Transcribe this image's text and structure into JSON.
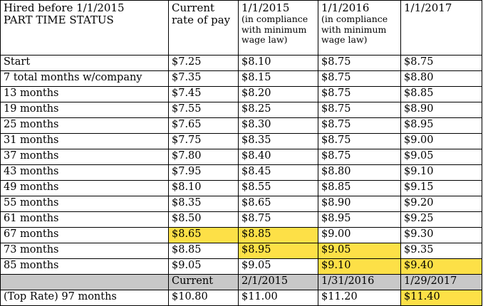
{
  "header": {
    "col0_line1": "Hired before 1/1/2015",
    "col0_line2": "PART TIME STATUS",
    "col1_line1": "Current",
    "col1_line2": "rate of pay",
    "col2_date": "1/1/2015",
    "col2_note": "(in compliance with minimum wage law)",
    "col3_date": "1/1/2016",
    "col3_note": "(in compliance with minimum wage law)",
    "col4_date": "1/1/2017"
  },
  "rows": [
    {
      "label": "Start",
      "current": "$7.25",
      "y2015": "$8.10",
      "y2016": "$8.75",
      "y2017": "$8.75"
    },
    {
      "label": "7 total months w/company",
      "current": "$7.35",
      "y2015": "$8.15",
      "y2016": "$8.75",
      "y2017": "$8.80"
    },
    {
      "label": "13 months",
      "current": "$7.45",
      "y2015": "$8.20",
      "y2016": "$8.75",
      "y2017": "$8.85"
    },
    {
      "label": "19 months",
      "current": "$7.55",
      "y2015": "$8.25",
      "y2016": "$8.75",
      "y2017": "$8.90"
    },
    {
      "label": "25 months",
      "current": "$7.65",
      "y2015": "$8.30",
      "y2016": "$8.75",
      "y2017": "$8.95"
    },
    {
      "label": "31 months",
      "current": "$7.75",
      "y2015": "$8.35",
      "y2016": "$8.75",
      "y2017": "$9.00"
    },
    {
      "label": "37 months",
      "current": "$7.80",
      "y2015": "$8.40",
      "y2016": "$8.75",
      "y2017": "$9.05"
    },
    {
      "label": "43 months",
      "current": "$7.95",
      "y2015": "$8.45",
      "y2016": "$8.80",
      "y2017": "$9.10"
    },
    {
      "label": "49 months",
      "current": "$8.10",
      "y2015": "$8.55",
      "y2016": "$8.85",
      "y2017": "$9.15"
    },
    {
      "label": "55 months",
      "current": "$8.35",
      "y2015": "$8.65",
      "y2016": "$8.90",
      "y2017": "$9.20"
    },
    {
      "label": "61 months",
      "current": "$8.50",
      "y2015": "$8.75",
      "y2016": "$8.95",
      "y2017": "$9.25"
    },
    {
      "label": "67 months",
      "current": "$8.65",
      "y2015": "$8.85",
      "y2016": "$9.00",
      "y2017": "$9.30"
    },
    {
      "label": "73 months",
      "current": "$8.85",
      "y2015": "$8.95",
      "y2016": "$9.05",
      "y2017": "$9.35"
    },
    {
      "label": "85 months",
      "current": "$9.05",
      "y2015": "$9.05",
      "y2016": "$9.10",
      "y2017": "$9.40"
    }
  ],
  "subheader": {
    "col0": "",
    "col1": "Current",
    "col2": "2/1/2015",
    "col3": "1/31/2016",
    "col4": "1/29/2017"
  },
  "top_rate": {
    "label": "(Top Rate) 97 months",
    "current": "$10.80",
    "y2015": "$11.00",
    "y2016": "$11.20",
    "y2017": "$11.40"
  },
  "colors": {
    "highlight": "#fde047",
    "subheader_bg": "#c8c8c8"
  }
}
